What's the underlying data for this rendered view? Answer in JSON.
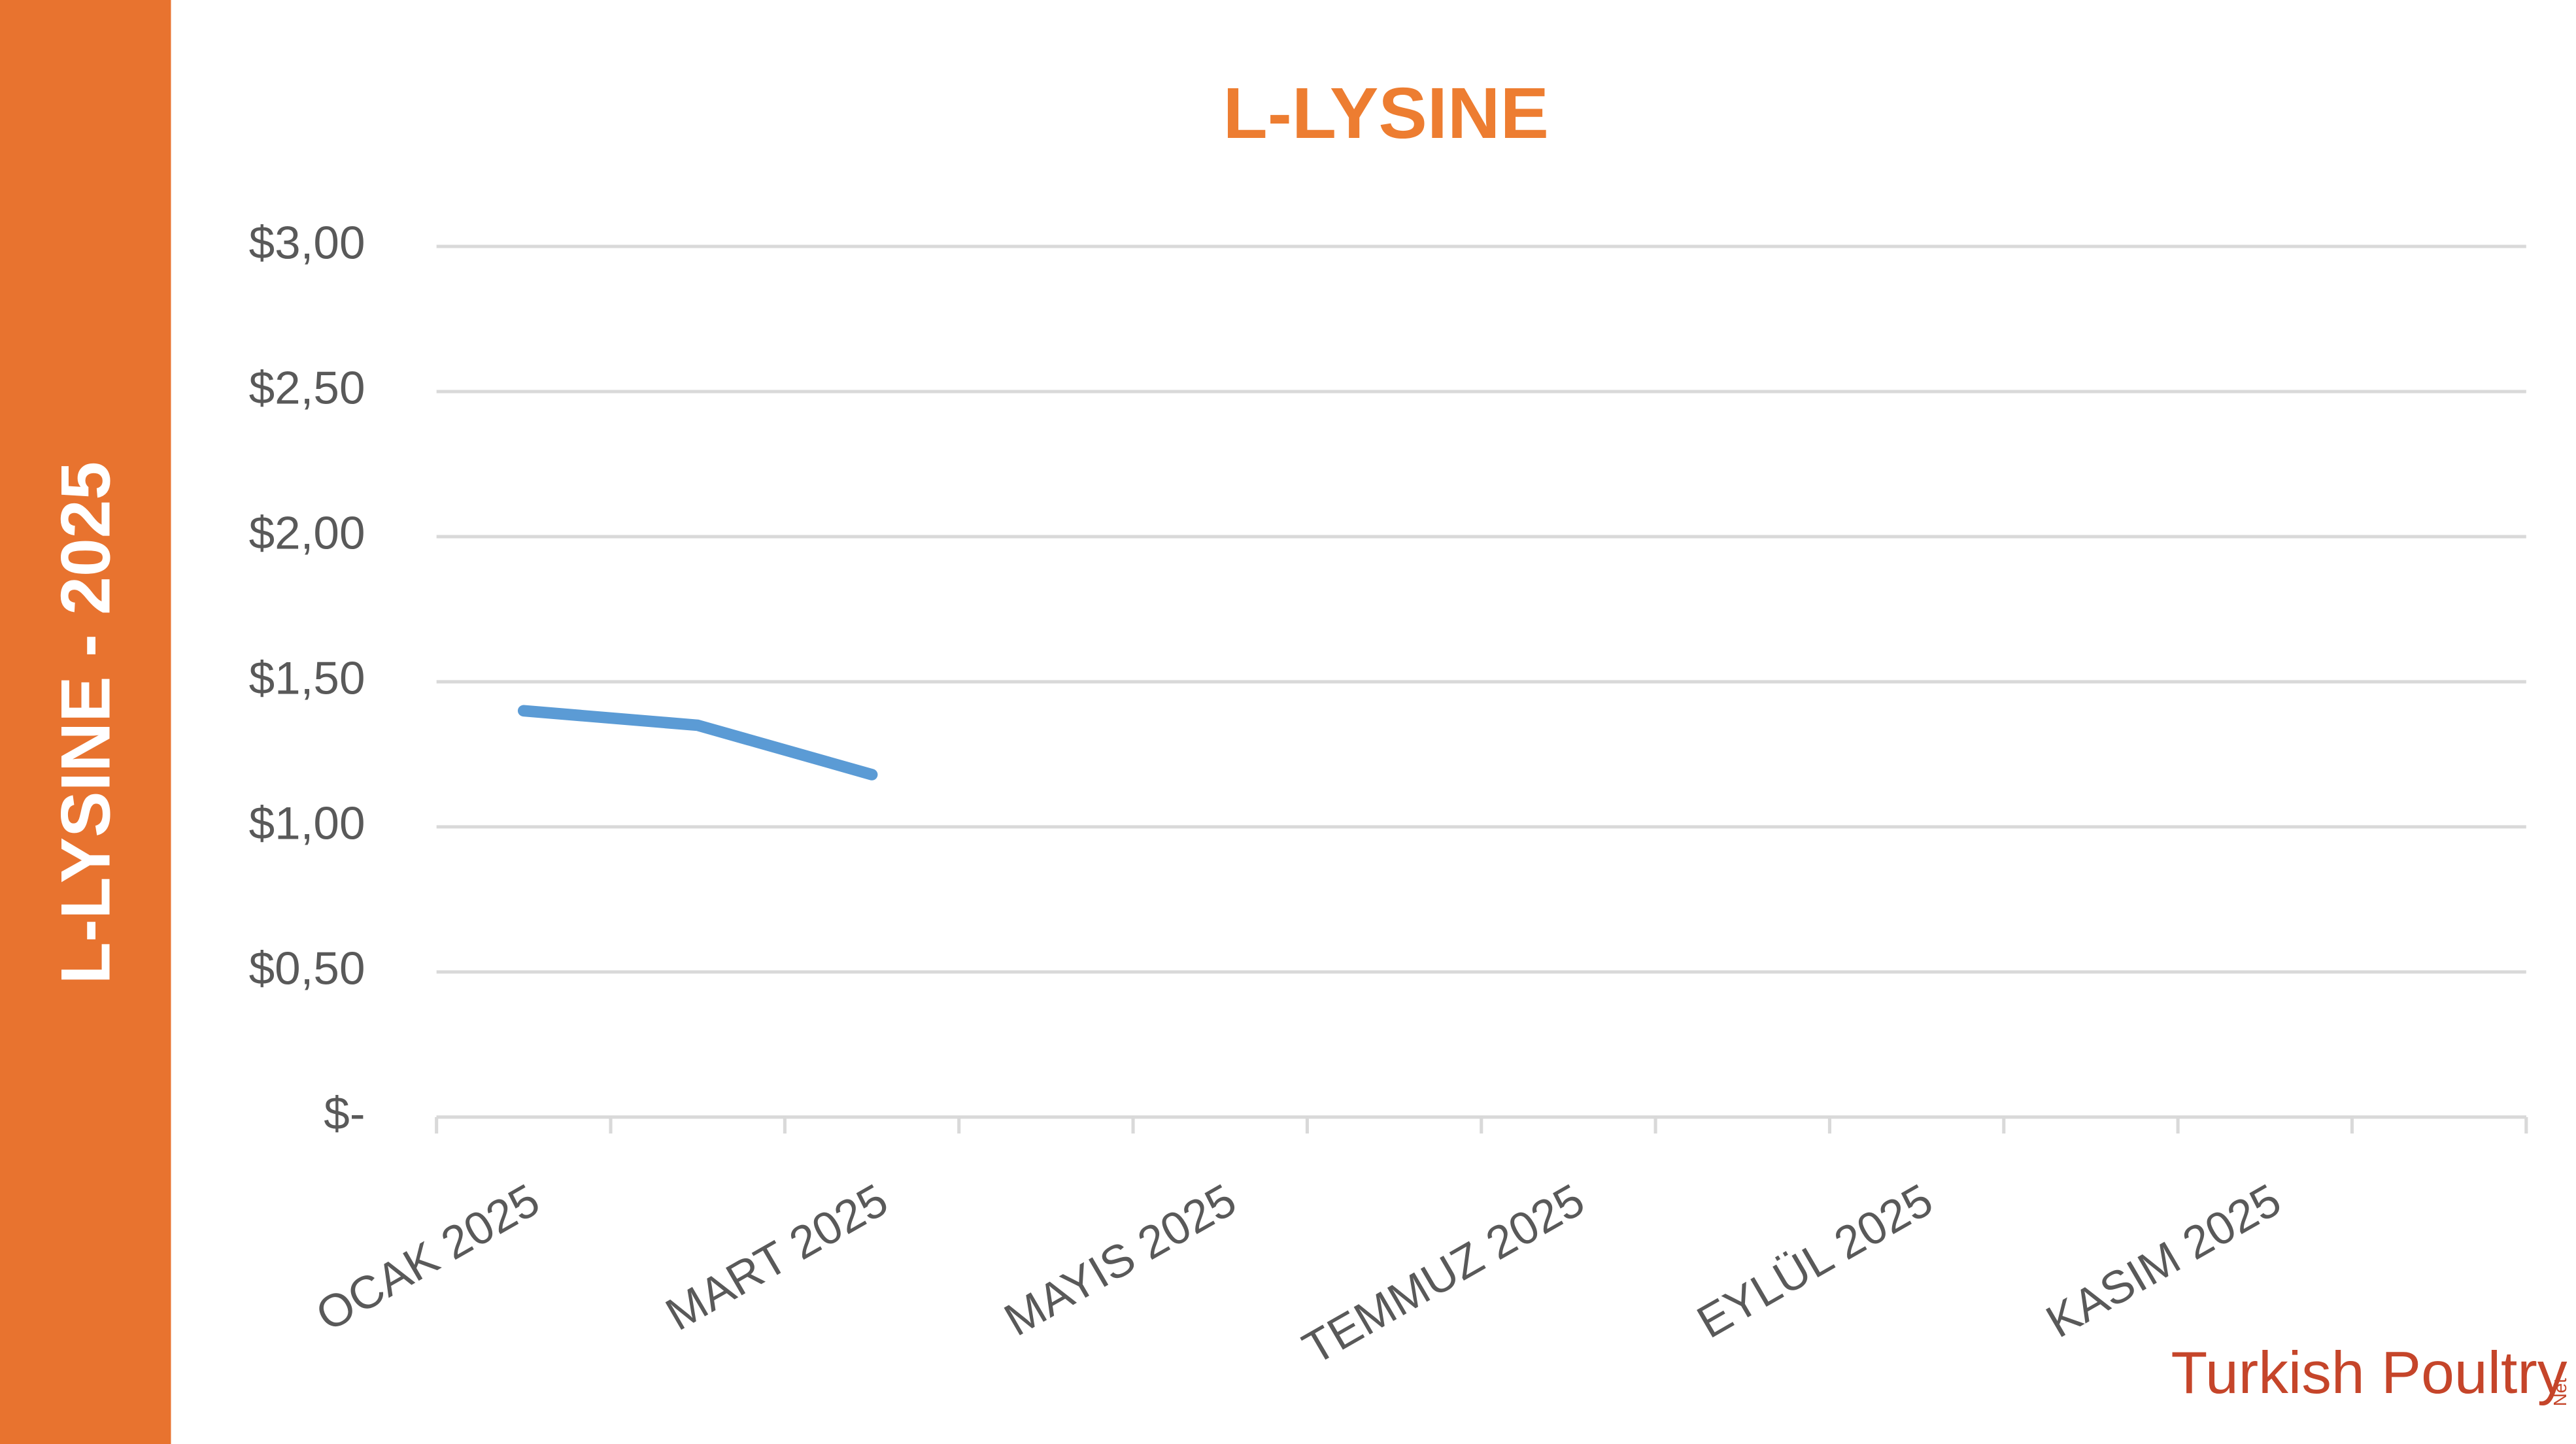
{
  "sidebar_title": "L-LYSINE - 2025",
  "logo": {
    "name": "Turkish Poultry",
    "suffix": "Net"
  },
  "chart_data": {
    "type": "line",
    "title": "L-LYSINE",
    "categories": [
      "OCAK 2025",
      null,
      "MART 2025",
      null,
      "MAYIS 2025",
      null,
      "TEMMUZ 2025",
      null,
      "EYLÜL 2025",
      null,
      "KASIM 2025",
      null
    ],
    "series": [
      {
        "name": "L-LYSINE",
        "color": "#5b9bd5",
        "values": [
          1.4,
          1.35,
          1.18,
          null,
          null,
          null,
          null,
          null,
          null,
          null,
          null,
          null
        ]
      }
    ],
    "ylim": [
      0,
      3
    ],
    "yticks": [
      {
        "value": 0,
        "label": "$-"
      },
      {
        "value": 0.5,
        "label": "$0,50"
      },
      {
        "value": 1,
        "label": "$1,00"
      },
      {
        "value": 1.5,
        "label": "$1,50"
      },
      {
        "value": 2,
        "label": "$2,00"
      },
      {
        "value": 2.5,
        "label": "$2,50"
      },
      {
        "value": 3,
        "label": "$3,00"
      }
    ],
    "grid": true
  }
}
